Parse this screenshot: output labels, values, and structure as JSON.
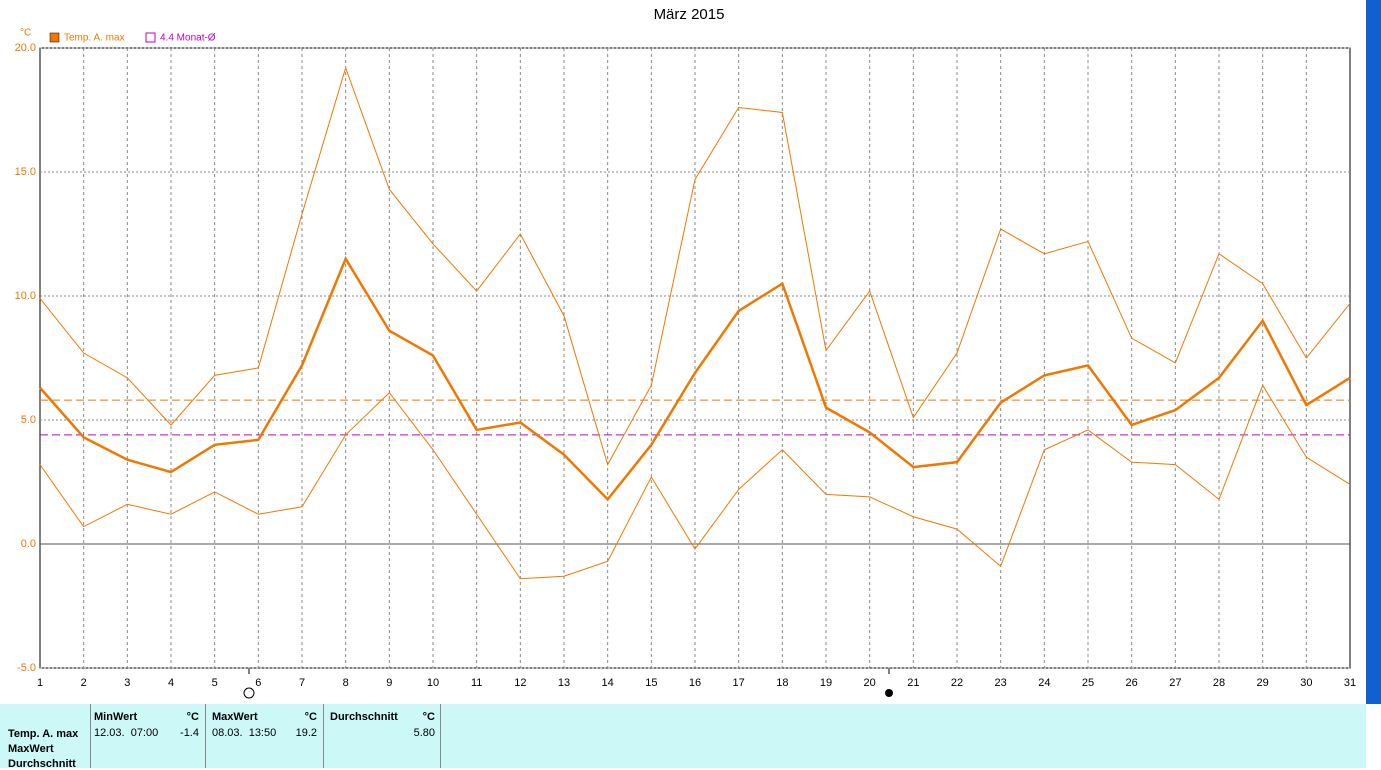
{
  "chart_data": {
    "type": "line",
    "title": "März 2015",
    "y_unit": "°C",
    "x": [
      1,
      2,
      3,
      4,
      5,
      6,
      7,
      8,
      9,
      10,
      11,
      12,
      13,
      14,
      15,
      16,
      17,
      18,
      19,
      20,
      21,
      22,
      23,
      24,
      25,
      26,
      27,
      28,
      29,
      30,
      31
    ],
    "xlim": [
      1,
      31
    ],
    "ylim": [
      -5,
      20
    ],
    "yticks": [
      {
        "value": -5,
        "label": "-5.0"
      },
      {
        "value": 0,
        "label": "0.0"
      },
      {
        "value": 5,
        "label": "5.0"
      },
      {
        "value": 10,
        "label": "10.0"
      },
      {
        "value": 15,
        "label": "15.0"
      },
      {
        "value": 20,
        "label": "20.0"
      }
    ],
    "grid": true,
    "series": [
      {
        "name": "Temp. A. max",
        "color": "#f07800",
        "width": 2.5,
        "values": [
          6.3,
          4.3,
          3.4,
          2.9,
          4.0,
          4.2,
          7.2,
          11.5,
          8.6,
          7.6,
          4.6,
          4.9,
          3.6,
          1.8,
          4.0,
          6.9,
          9.4,
          10.5,
          5.5,
          4.5,
          3.1,
          3.3,
          5.7,
          6.8,
          7.2,
          4.8,
          5.4,
          6.7,
          9.0,
          5.6,
          6.7
        ]
      },
      {
        "color": "#f07800",
        "width": 1,
        "values": [
          9.9,
          7.7,
          6.7,
          4.8,
          6.8,
          7.1,
          13.3,
          19.2,
          14.3,
          12.1,
          10.2,
          12.5,
          9.2,
          3.2,
          6.4,
          14.7,
          17.6,
          17.4,
          7.8,
          10.2,
          5.1,
          7.7,
          12.7,
          11.7,
          12.2,
          8.3,
          7.3,
          11.7,
          10.5,
          7.5,
          9.7
        ]
      },
      {
        "color": "#f07800",
        "width": 1,
        "values": [
          3.2,
          0.7,
          1.6,
          1.2,
          2.1,
          1.2,
          1.5,
          4.4,
          6.1,
          3.8,
          1.2,
          -1.4,
          -1.3,
          -0.7,
          2.7,
          -0.2,
          2.2,
          3.8,
          2.0,
          1.9,
          1.1,
          0.6,
          -0.9,
          3.8,
          4.6,
          3.3,
          3.2,
          1.8,
          6.4,
          3.5,
          2.4
        ]
      }
    ],
    "reference_lines": [
      {
        "value": 5.8,
        "color": "#f07800"
      },
      {
        "value": 4.4,
        "color": "#c000c0",
        "name": "4.4 Monat-Ø"
      }
    ]
  },
  "table": {
    "header": [
      "MinWert",
      "°C",
      "MaxWert",
      "°C",
      "Durchschnitt",
      "°C"
    ],
    "row_labels": [
      "Temp. A. max",
      "MaxWert",
      "Durchschnitt"
    ],
    "rows": [
      [
        "12.03.  07:00",
        "-1.4",
        "08.03.  13:50",
        "19.2",
        "5.80"
      ]
    ]
  }
}
